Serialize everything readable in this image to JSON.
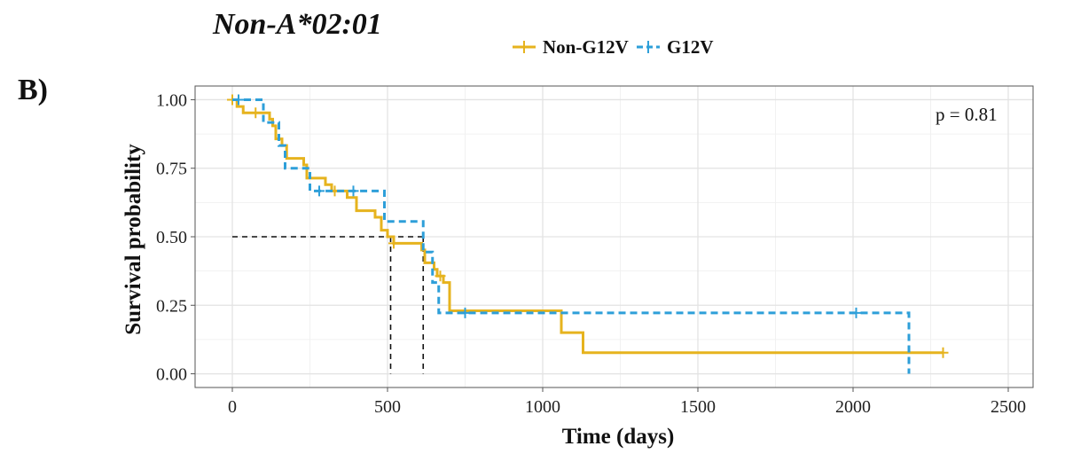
{
  "figure": {
    "title": "Non-A*02:01",
    "panel_label": "B)"
  },
  "chart_data": {
    "type": "line",
    "subtype": "kaplan-meier",
    "title": "Non-A*02:01",
    "xlabel": "Time (days)",
    "ylabel": "Survival probability",
    "xlim": [
      -120,
      2580
    ],
    "ylim": [
      -0.05,
      1.05
    ],
    "x_ticks": [
      0,
      500,
      1000,
      1500,
      2000,
      2500
    ],
    "y_ticks": [
      0.0,
      0.25,
      0.5,
      0.75,
      1.0
    ],
    "x_tick_labels": [
      "0",
      "500",
      "1000",
      "1500",
      "2000",
      "2500"
    ],
    "y_tick_labels": [
      "0.00",
      "0.25",
      "0.50",
      "0.75",
      "1.00"
    ],
    "grid": true,
    "legend_position": "top",
    "annotation": "p = 0.81",
    "median_y": 0.5,
    "series": [
      {
        "name": "Non-G12V",
        "color": "#E6B31E",
        "line_style": "solid",
        "steps": [
          [
            0,
            1.0
          ],
          [
            15,
            0.975
          ],
          [
            35,
            0.952
          ],
          [
            120,
            0.929
          ],
          [
            130,
            0.905
          ],
          [
            140,
            0.857
          ],
          [
            160,
            0.833
          ],
          [
            175,
            0.786
          ],
          [
            230,
            0.762
          ],
          [
            240,
            0.714
          ],
          [
            300,
            0.69
          ],
          [
            320,
            0.667
          ],
          [
            370,
            0.643
          ],
          [
            400,
            0.595
          ],
          [
            460,
            0.571
          ],
          [
            480,
            0.524
          ],
          [
            500,
            0.5
          ],
          [
            520,
            0.476
          ],
          [
            610,
            0.452
          ],
          [
            620,
            0.405
          ],
          [
            650,
            0.381
          ],
          [
            660,
            0.357
          ],
          [
            680,
            0.333
          ],
          [
            700,
            0.23
          ],
          [
            1060,
            0.15
          ],
          [
            1130,
            0.077
          ],
          [
            2290,
            0.077
          ]
        ],
        "censored": [
          [
            0,
            1.0
          ],
          [
            75,
            0.952
          ],
          [
            330,
            0.667
          ],
          [
            520,
            0.476
          ],
          [
            670,
            0.357
          ],
          [
            2290,
            0.077
          ]
        ],
        "median": 510
      },
      {
        "name": "G12V",
        "color": "#2E9FD9",
        "line_style": "dashed",
        "steps": [
          [
            0,
            1.0
          ],
          [
            100,
            0.917
          ],
          [
            150,
            0.833
          ],
          [
            170,
            0.75
          ],
          [
            250,
            0.667
          ],
          [
            490,
            0.556
          ],
          [
            615,
            0.444
          ],
          [
            645,
            0.333
          ],
          [
            665,
            0.222
          ],
          [
            2180,
            0.0
          ],
          [
            2180,
            0.0
          ]
        ],
        "censored": [
          [
            20,
            1.0
          ],
          [
            280,
            0.667
          ],
          [
            390,
            0.667
          ],
          [
            750,
            0.222
          ],
          [
            2010,
            0.222
          ]
        ],
        "median": 615
      }
    ]
  }
}
